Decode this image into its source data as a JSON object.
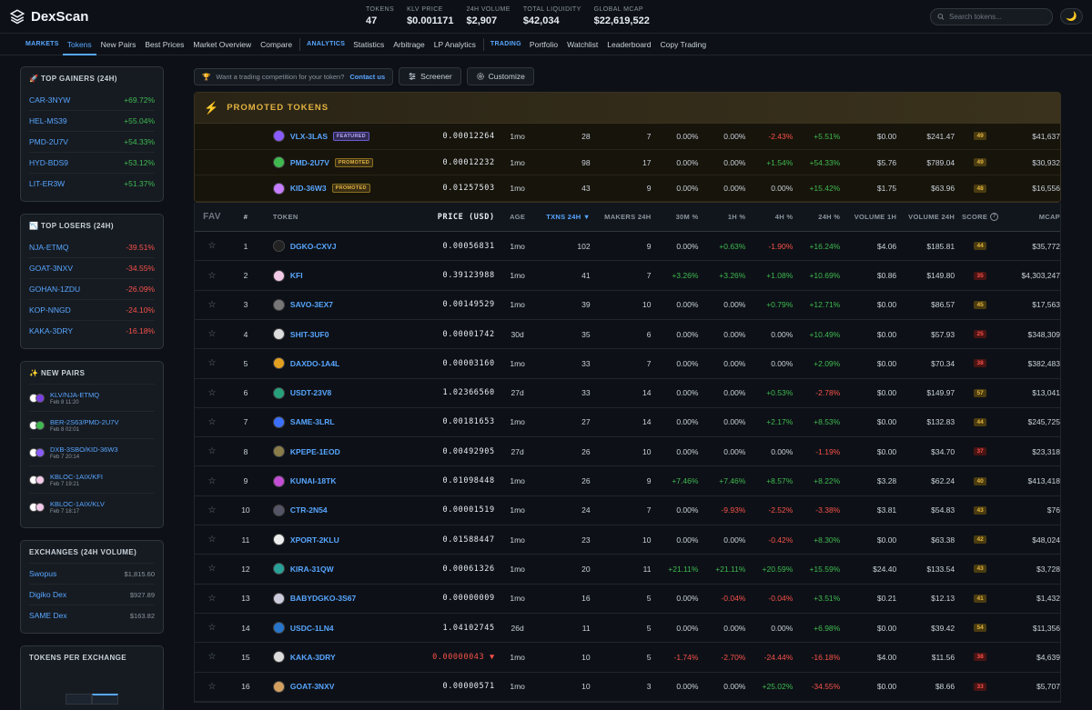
{
  "app": {
    "name": "DexScan"
  },
  "stats": [
    {
      "label": "TOKENS",
      "value": "47"
    },
    {
      "label": "KLV PRICE",
      "value": "$0.001171"
    },
    {
      "label": "24H VOLUME",
      "value": "$2,907"
    },
    {
      "label": "TOTAL LIQUIDITY",
      "value": "$42,034"
    },
    {
      "label": "GLOBAL MCAP",
      "value": "$22,619,522"
    }
  ],
  "search": {
    "placeholder": "Search tokens..."
  },
  "nav": {
    "markets": "MARKETS",
    "analytics": "ANALYTICS",
    "trading": "TRADING",
    "markets_items": [
      "Tokens",
      "New Pairs",
      "Best Prices",
      "Market Overview",
      "Compare"
    ],
    "analytics_items": [
      "Statistics",
      "Arbitrage",
      "LP Analytics"
    ],
    "trading_items": [
      "Portfolio",
      "Watchlist",
      "Leaderboard",
      "Copy Trading"
    ]
  },
  "sidebar": {
    "gainers_title": "🚀 TOP GAINERS (24H)",
    "gainers": [
      {
        "sym": "CAR-3NYW",
        "chg": "+69.72%"
      },
      {
        "sym": "HEL-MS39",
        "chg": "+55.04%"
      },
      {
        "sym": "PMD-2U7V",
        "chg": "+54.33%"
      },
      {
        "sym": "HYD-BDS9",
        "chg": "+53.12%"
      },
      {
        "sym": "LIT-ER3W",
        "chg": "+51.37%"
      }
    ],
    "losers_title": "📉 TOP LOSERS (24H)",
    "losers": [
      {
        "sym": "NJA-ETMQ",
        "chg": "-39.51%"
      },
      {
        "sym": "GOAT-3NXV",
        "chg": "-34.55%"
      },
      {
        "sym": "GOHAN-1ZDU",
        "chg": "-26.09%"
      },
      {
        "sym": "KOP-NNGD",
        "chg": "-24.10%"
      },
      {
        "sym": "KAKA-3DRY",
        "chg": "-16.18%"
      }
    ],
    "pairs_title": "✨ NEW PAIRS",
    "pairs": [
      {
        "name": "KLV/NJA-ETMQ",
        "time": "Feb 8 11:20"
      },
      {
        "name": "BER-2S63/PMD-2U7V",
        "time": "Feb 8 02:01"
      },
      {
        "name": "DXB-3SBO/KID-36W3",
        "time": "Feb 7 20:14"
      },
      {
        "name": "KBLOC-1AIX/KFI",
        "time": "Feb 7 19:21"
      },
      {
        "name": "KBLOC-1AIX/KLV",
        "time": "Feb 7 18:17"
      }
    ],
    "exchanges_title": "EXCHANGES (24H VOLUME)",
    "exchanges": [
      {
        "name": "Swopus",
        "vol": "$1,815.60"
      },
      {
        "name": "Digiko Dex",
        "vol": "$927.89"
      },
      {
        "name": "SAME Dex",
        "vol": "$163.82"
      }
    ],
    "tpe_title": "TOKENS PER EXCHANGE"
  },
  "banner": {
    "text": "Want a trading competition for your token?",
    "link": "Contact us"
  },
  "toolbar": {
    "screener": "Screener",
    "customize": "Customize"
  },
  "promo": {
    "title": "PROMOTED TOKENS",
    "rows": [
      {
        "tok": "VLX-3LAS",
        "badge": "FEATURED",
        "price": "0.00012264",
        "age": "1mo",
        "tx": "28",
        "mk": "7",
        "m30": "0.00%",
        "h1": "0.00%",
        "h4": "-2.43%",
        "h24": "+5.51%",
        "v1": "$0.00",
        "v24": "$241.47",
        "score": "49",
        "mc": "$41,637",
        "color": "#8a5cff"
      },
      {
        "tok": "PMD-2U7V",
        "badge": "PROMOTED",
        "price": "0.00012232",
        "age": "1mo",
        "tx": "98",
        "mk": "17",
        "m30": "0.00%",
        "h1": "0.00%",
        "h4": "+1.54%",
        "h24": "+54.33%",
        "v1": "$5.76",
        "v24": "$789.04",
        "score": "49",
        "mc": "$30,932",
        "color": "#3fb950"
      },
      {
        "tok": "KID-36W3",
        "badge": "PROMOTED",
        "price": "0.01257503",
        "age": "1mo",
        "tx": "43",
        "mk": "9",
        "m30": "0.00%",
        "h1": "0.00%",
        "h4": "0.00%",
        "h24": "+15.42%",
        "v1": "$1.75",
        "v24": "$63.96",
        "score": "48",
        "mc": "$16,556",
        "color": "#c77dff"
      }
    ]
  },
  "table": {
    "headers": {
      "fav": "FAV",
      "num": "#",
      "token": "TOKEN",
      "price": "PRICE (USD)",
      "age": "AGE",
      "tx": "TXNS 24H ▼",
      "mk": "MAKERS 24H",
      "m30": "30M %",
      "h1": "1H %",
      "h4": "4H %",
      "h24": "24H %",
      "v1": "VOLUME 1H",
      "v24": "VOLUME 24H",
      "score": "SCORE",
      "mc": "MCAP"
    },
    "rows": [
      {
        "n": "1",
        "tok": "DGKO-CXVJ",
        "price": "0.00056831",
        "age": "1mo",
        "tx": "102",
        "mk": "9",
        "m30": "0.00%",
        "h1": "+0.63%",
        "h4": "-1.90%",
        "h24": "+16.24%",
        "v1": "$4.06",
        "v24": "$185.81",
        "score": "44",
        "mc": "$35,772",
        "color": "#222"
      },
      {
        "n": "2",
        "tok": "KFI",
        "price": "0.39123988",
        "age": "1mo",
        "tx": "41",
        "mk": "7",
        "m30": "+3.26%",
        "h1": "+3.26%",
        "h4": "+1.08%",
        "h24": "+10.69%",
        "v1": "$0.86",
        "v24": "$149.80",
        "score": "35",
        "mc": "$4,303,247",
        "color": "#f3c9e8"
      },
      {
        "n": "3",
        "tok": "SAVO-3EX7",
        "price": "0.00149529",
        "age": "1mo",
        "tx": "39",
        "mk": "10",
        "m30": "0.00%",
        "h1": "0.00%",
        "h4": "+0.79%",
        "h24": "+12.71%",
        "v1": "$0.00",
        "v24": "$86.57",
        "score": "45",
        "mc": "$17,563",
        "color": "#777"
      },
      {
        "n": "4",
        "tok": "SHIT-3UF0",
        "price": "0.00001742",
        "age": "30d",
        "tx": "35",
        "mk": "6",
        "m30": "0.00%",
        "h1": "0.00%",
        "h4": "0.00%",
        "h24": "+10.49%",
        "v1": "$0.00",
        "v24": "$57.93",
        "score": "25",
        "mc": "$348,309",
        "color": "#ddd"
      },
      {
        "n": "5",
        "tok": "DAXDO-1A4L",
        "price": "0.00003160",
        "age": "1mo",
        "tx": "33",
        "mk": "7",
        "m30": "0.00%",
        "h1": "0.00%",
        "h4": "0.00%",
        "h24": "+2.09%",
        "v1": "$0.00",
        "v24": "$70.34",
        "score": "38",
        "mc": "$382,483",
        "color": "#e3a020"
      },
      {
        "n": "6",
        "tok": "USDT-23V8",
        "price": "1.02366560",
        "age": "27d",
        "tx": "33",
        "mk": "14",
        "m30": "0.00%",
        "h1": "0.00%",
        "h4": "+0.53%",
        "h24": "-2.78%",
        "v1": "$0.00",
        "v24": "$149.97",
        "score": "57",
        "mc": "$13,041",
        "color": "#26a17b"
      },
      {
        "n": "7",
        "tok": "SAME-3LRL",
        "price": "0.00181653",
        "age": "1mo",
        "tx": "27",
        "mk": "14",
        "m30": "0.00%",
        "h1": "0.00%",
        "h4": "+2.17%",
        "h24": "+8.53%",
        "v1": "$0.00",
        "v24": "$132.83",
        "score": "44",
        "mc": "$245,725",
        "color": "#3b6fff"
      },
      {
        "n": "8",
        "tok": "KPEPE-1EOD",
        "price": "0.00492905",
        "age": "27d",
        "tx": "26",
        "mk": "10",
        "m30": "0.00%",
        "h1": "0.00%",
        "h4": "0.00%",
        "h24": "-1.19%",
        "v1": "$0.00",
        "v24": "$34.70",
        "score": "37",
        "mc": "$23,318",
        "color": "#8b7d4a"
      },
      {
        "n": "9",
        "tok": "KUNAI-18TK",
        "price": "0.01098448",
        "age": "1mo",
        "tx": "26",
        "mk": "9",
        "m30": "+7.46%",
        "h1": "+7.46%",
        "h4": "+8.57%",
        "h24": "+8.22%",
        "v1": "$3.28",
        "v24": "$62.24",
        "score": "40",
        "mc": "$413,418",
        "color": "#c44dd6"
      },
      {
        "n": "10",
        "tok": "CTR-2N54",
        "price": "0.00001519",
        "age": "1mo",
        "tx": "24",
        "mk": "7",
        "m30": "0.00%",
        "h1": "-9.93%",
        "h4": "-2.52%",
        "h24": "-3.38%",
        "v1": "$3.81",
        "v24": "$54.83",
        "score": "43",
        "mc": "$76",
        "color": "#556"
      },
      {
        "n": "11",
        "tok": "XPORT-2KLU",
        "price": "0.01588447",
        "age": "1mo",
        "tx": "23",
        "mk": "10",
        "m30": "0.00%",
        "h1": "0.00%",
        "h4": "-0.42%",
        "h24": "+8.30%",
        "v1": "$0.00",
        "v24": "$63.38",
        "score": "42",
        "mc": "$48,024",
        "color": "#eee"
      },
      {
        "n": "12",
        "tok": "KIRA-31QW",
        "price": "0.00061326",
        "age": "1mo",
        "tx": "20",
        "mk": "11",
        "m30": "+21.11%",
        "h1": "+21.11%",
        "h4": "+20.59%",
        "h24": "+15.59%",
        "v1": "$24.40",
        "v24": "$133.54",
        "score": "43",
        "mc": "$3,728",
        "color": "#2aa198"
      },
      {
        "n": "13",
        "tok": "BABYDGKO-3S67",
        "price": "0.00000009",
        "age": "1mo",
        "tx": "16",
        "mk": "5",
        "m30": "0.00%",
        "h1": "-0.04%",
        "h4": "-0.04%",
        "h24": "+3.51%",
        "v1": "$0.21",
        "v24": "$12.13",
        "score": "41",
        "mc": "$1,432",
        "color": "#ccd"
      },
      {
        "n": "14",
        "tok": "USDC-1LN4",
        "price": "1.04102745",
        "age": "26d",
        "tx": "11",
        "mk": "5",
        "m30": "0.00%",
        "h1": "0.00%",
        "h4": "0.00%",
        "h24": "+6.98%",
        "v1": "$0.00",
        "v24": "$39.42",
        "score": "54",
        "mc": "$11,356",
        "color": "#2775ca"
      },
      {
        "n": "15",
        "tok": "KAKA-3DRY",
        "price": "0.00000043 ▼",
        "age": "1mo",
        "tx": "10",
        "mk": "5",
        "m30": "-1.74%",
        "h1": "-2.70%",
        "h4": "-24.44%",
        "h24": "-16.18%",
        "v1": "$4.00",
        "v24": "$11.56",
        "score": "38",
        "mc": "$4,639",
        "color": "#ddd"
      },
      {
        "n": "16",
        "tok": "GOAT-3NXV",
        "price": "0.00000571",
        "age": "1mo",
        "tx": "10",
        "mk": "3",
        "m30": "0.00%",
        "h1": "0.00%",
        "h4": "+25.02%",
        "h24": "-34.55%",
        "v1": "$0.00",
        "v24": "$8.66",
        "score": "33",
        "mc": "$5,707",
        "color": "#d4a060"
      }
    ]
  }
}
